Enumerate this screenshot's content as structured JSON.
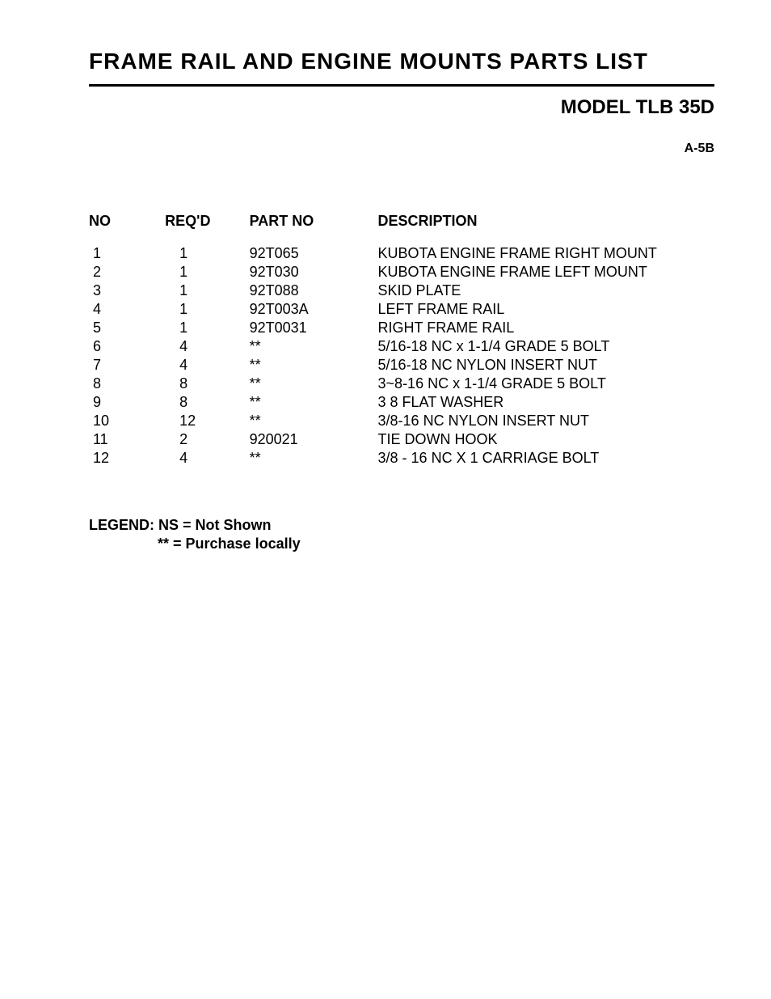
{
  "title": "FRAME RAIL AND ENGINE MOUNTS PARTS LIST",
  "model": "MODEL TLB 35D",
  "page_code": "A-5B",
  "table": {
    "headers": {
      "no": "NO",
      "reqd": "REQ'D",
      "partno": "PART NO",
      "desc": "DESCRIPTION"
    },
    "rows": [
      {
        "no": "1",
        "reqd": "1",
        "partno": "92T065",
        "desc": "KUBOTA ENGINE FRAME RIGHT MOUNT"
      },
      {
        "no": "2",
        "reqd": "1",
        "partno": "92T030",
        "desc": "KUBOTA ENGINE FRAME LEFT MOUNT"
      },
      {
        "no": "3",
        "reqd": "1",
        "partno": "92T088",
        "desc": "SKID PLATE"
      },
      {
        "no": "4",
        "reqd": "1",
        "partno": "92T003A",
        "desc": "LEFT FRAME RAIL"
      },
      {
        "no": "5",
        "reqd": "1",
        "partno": "92T0031",
        "desc": "RIGHT FRAME RAIL"
      },
      {
        "no": "6",
        "reqd": "4",
        "partno": "**",
        "desc": "5/16-18 NC x 1-1/4 GRADE 5 BOLT"
      },
      {
        "no": "7",
        "reqd": "4",
        "partno": "**",
        "desc": "5/16-18 NC NYLON INSERT NUT"
      },
      {
        "no": "8",
        "reqd": "8",
        "partno": "**",
        "desc": "3~8-16 NC x 1-1/4 GRADE 5 BOLT"
      },
      {
        "no": "9",
        "reqd": "8",
        "partno": "**",
        "desc": "3 8 FLAT WASHER"
      },
      {
        "no": "10",
        "reqd": "12",
        "partno": "**",
        "desc": "3/8-16 NC NYLON INSERT NUT"
      },
      {
        "no": "11",
        "reqd": "2",
        "partno": "920021",
        "desc": "TIE DOWN HOOK"
      },
      {
        "no": "12",
        "reqd": "4",
        "partno": "**",
        "desc": "3/8 - 16 NC X 1 CARRIAGE BOLT"
      }
    ]
  },
  "legend": {
    "line1": "LEGEND: NS = Not Shown",
    "line2": "** = Purchase locally"
  },
  "colors": {
    "background": "#ffffff",
    "text": "#000000",
    "border": "#000000"
  },
  "typography": {
    "title_fontsize": 28,
    "model_fontsize": 24,
    "body_fontsize": 18,
    "font_family": "Arial"
  }
}
